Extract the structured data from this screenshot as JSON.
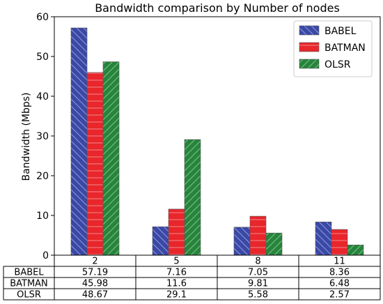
{
  "chart_data": {
    "type": "bar",
    "title": "Bandwidth comparison by Number of nodes",
    "xlabel": "",
    "ylabel": "Bandwidth (Mbps)",
    "ylim": [
      0,
      60
    ],
    "yticks": [
      0,
      10,
      20,
      30,
      40,
      50,
      60
    ],
    "categories": [
      "2",
      "5",
      "8",
      "11"
    ],
    "grid": false,
    "legend_position": "top-right",
    "series": [
      {
        "name": "BABEL",
        "values": [
          57.19,
          7.16,
          7.05,
          8.36
        ],
        "color": "#3a48a8",
        "hatch": "backslash"
      },
      {
        "name": "BATMAN",
        "values": [
          45.98,
          11.6,
          9.81,
          6.48
        ],
        "color": "#e8262b",
        "hatch": "horizontal"
      },
      {
        "name": "OLSR",
        "values": [
          48.67,
          29.1,
          5.58,
          2.57
        ],
        "color": "#25853a",
        "hatch": "slash"
      }
    ],
    "table": {
      "rows": [
        {
          "label": "BABEL",
          "cells": [
            "57.19",
            "7.16",
            "7.05",
            "8.36"
          ]
        },
        {
          "label": "BATMAN",
          "cells": [
            "45.98",
            "11.6",
            "9.81",
            "6.48"
          ]
        },
        {
          "label": "OLSR",
          "cells": [
            "48.67",
            "29.1",
            "5.58",
            "2.57"
          ]
        }
      ]
    }
  }
}
